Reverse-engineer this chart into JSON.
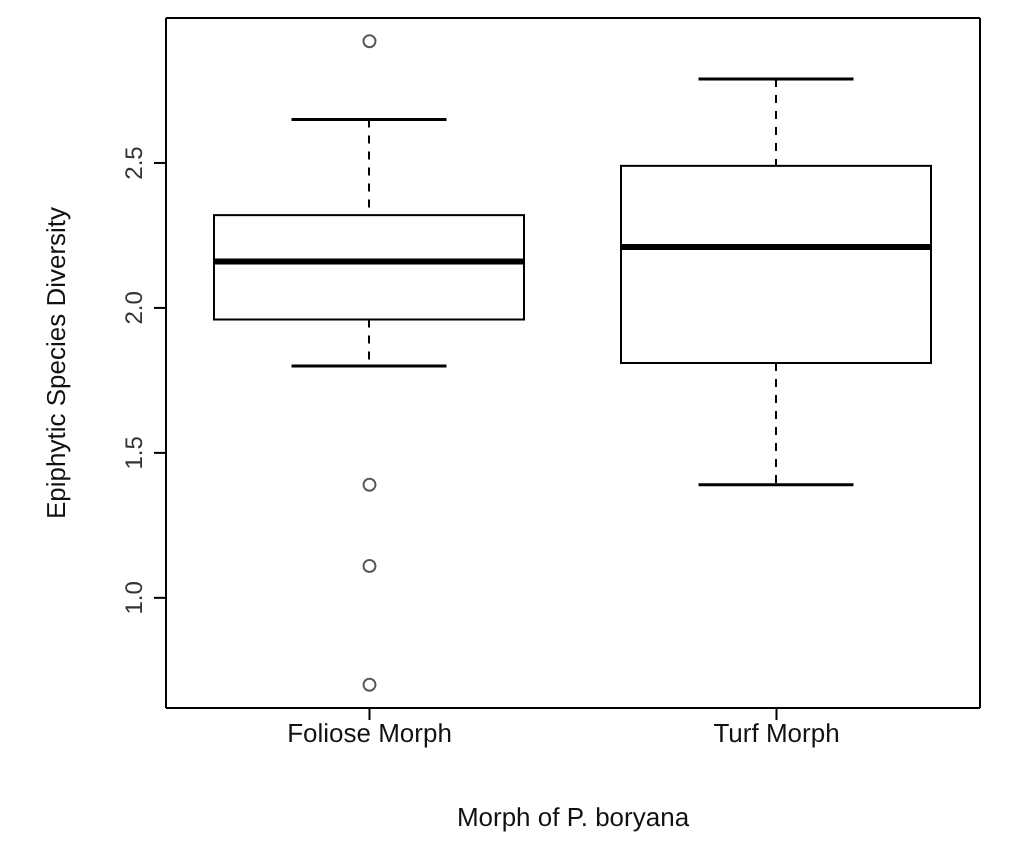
{
  "chart_data": {
    "type": "box",
    "xlabel": "Morph of P. boryana",
    "ylabel": "Epiphytic Species Diversity",
    "categories": [
      "Foliose Morph",
      "Turf Morph"
    ],
    "boxes": [
      {
        "low": 1.8,
        "q1": 1.96,
        "median": 2.16,
        "q3": 2.32,
        "high": 2.65,
        "outliers": [
          2.92,
          1.39,
          1.11,
          0.7
        ]
      },
      {
        "low": 1.39,
        "q1": 1.81,
        "median": 2.21,
        "q3": 2.49,
        "high": 2.79
      }
    ],
    "ylim": [
      0.62,
      3.0
    ],
    "yticks": [
      {
        "value": 1,
        "label": "1.0"
      },
      {
        "value": 1.5,
        "label": "1.5"
      },
      {
        "value": 2,
        "label": "2.0"
      },
      {
        "value": 2.5,
        "label": "2.5"
      }
    ],
    "grid": false
  }
}
